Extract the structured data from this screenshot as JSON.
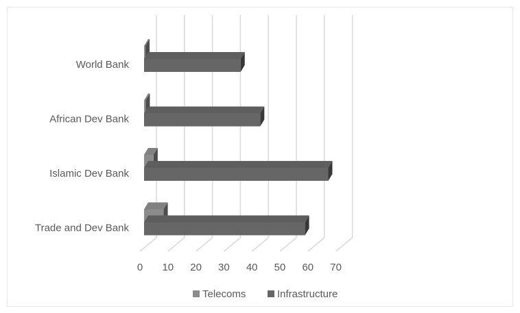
{
  "chart_data": {
    "type": "bar",
    "orientation": "horizontal",
    "style": "3d-clustered",
    "categories": [
      "World Bank",
      "African Dev Bank",
      "Islamic Dev Bank",
      "Trade and Dev Bank"
    ],
    "series": [
      {
        "name": "Telecoms",
        "values": [
          0.5,
          0.6,
          3.4,
          7
        ],
        "color": "#8c8c8c"
      },
      {
        "name": "Infrastructure",
        "values": [
          34.5,
          41.5,
          65.8,
          57.5
        ],
        "color": "#666666"
      }
    ],
    "x_ticks": [
      "0",
      "10",
      "20",
      "30",
      "40",
      "50",
      "60",
      "70"
    ],
    "xlim": [
      0,
      70
    ],
    "grid": true,
    "legend_position": "bottom"
  },
  "colors": {
    "telecoms": "#8c8c8c",
    "infrastructure": "#666666",
    "gridline": "#d9d9d9",
    "text": "#595959"
  }
}
